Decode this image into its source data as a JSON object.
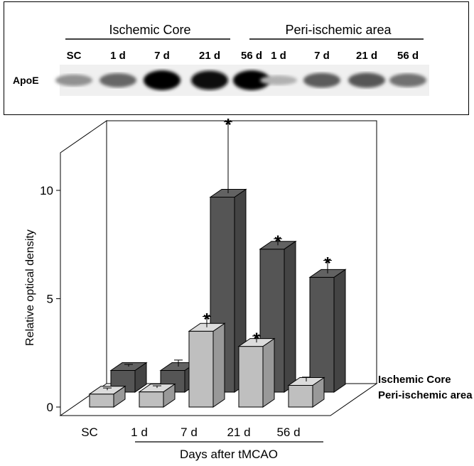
{
  "blot": {
    "groups": [
      "Ischemic Core",
      "Peri-ischemic area"
    ],
    "lanes": [
      "SC",
      "1 d",
      "7 d",
      "21 d",
      "56 d",
      "1 d",
      "7 d",
      "21 d",
      "56 d"
    ],
    "band_label": "ApoE",
    "band_intensity": [
      0.35,
      0.55,
      1.0,
      0.95,
      1.0,
      0.2,
      0.6,
      0.62,
      0.5
    ]
  },
  "chart_data": {
    "type": "bar",
    "style": "3d-grouped",
    "categories": [
      "SC",
      "1 d",
      "7 d",
      "21 d",
      "56 d"
    ],
    "series": [
      {
        "name": "Ischemic Core",
        "color": "#555555",
        "values": [
          1.0,
          1.0,
          9.0,
          6.6,
          5.3
        ],
        "errors": [
          0.1,
          0.3,
          3.3,
          0.3,
          0.6
        ],
        "significant": [
          false,
          false,
          true,
          true,
          true
        ]
      },
      {
        "name": "Peri-ischemic area",
        "color": "#bfbfbf",
        "values": [
          0.6,
          0.7,
          3.5,
          2.8,
          1.0
        ],
        "errors": [
          0.1,
          0.1,
          0.5,
          0.3,
          0.2
        ],
        "significant": [
          false,
          false,
          true,
          true,
          false
        ]
      }
    ],
    "ylabel": "Relative optical density",
    "xlabel": "Days after tMCAO",
    "yticks": [
      0,
      5,
      10
    ],
    "ylim": [
      0,
      13
    ],
    "significance_marker": "*",
    "legend_position": "right"
  }
}
